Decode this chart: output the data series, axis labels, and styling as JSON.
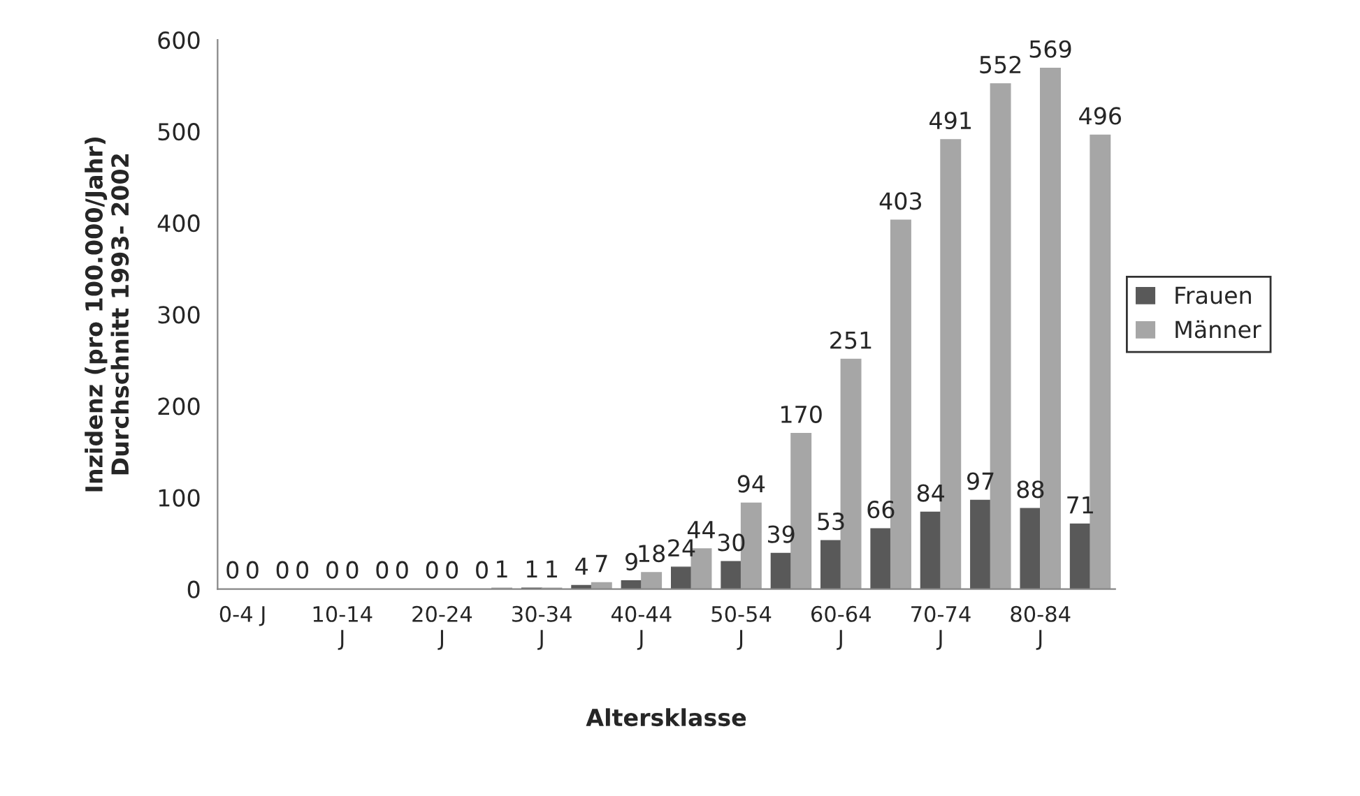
{
  "chart_data": {
    "type": "bar",
    "ylabel": "Inzidenz (pro 100.000/Jahr)\nDurchschnitt 1993- 2002",
    "xlabel": "Altersklasse",
    "categories": [
      "0-4 J",
      null,
      "10-14\nJ",
      null,
      "20-24\nJ",
      null,
      "30-34\nJ",
      null,
      "40-44\nJ",
      null,
      "50-54\nJ",
      null,
      "60-64\nJ",
      null,
      "70-74\nJ",
      null,
      "80-84\nJ",
      null
    ],
    "series": [
      {
        "name": "Frauen",
        "color": "#595959",
        "values": [
          0,
          0,
          0,
          0,
          0,
          0,
          1,
          4,
          9,
          24,
          30,
          39,
          53,
          66,
          84,
          97,
          88,
          71
        ]
      },
      {
        "name": "Männer",
        "color": "#a6a6a6",
        "values": [
          0,
          0,
          0,
          0,
          0,
          1,
          1,
          7,
          18,
          44,
          94,
          170,
          251,
          403,
          491,
          552,
          569,
          496
        ]
      }
    ],
    "ylim": [
      0,
      600
    ],
    "yticks": [
      0,
      100,
      200,
      300,
      400,
      500,
      600
    ],
    "data_labels": true,
    "grid": false,
    "legend": "right"
  }
}
